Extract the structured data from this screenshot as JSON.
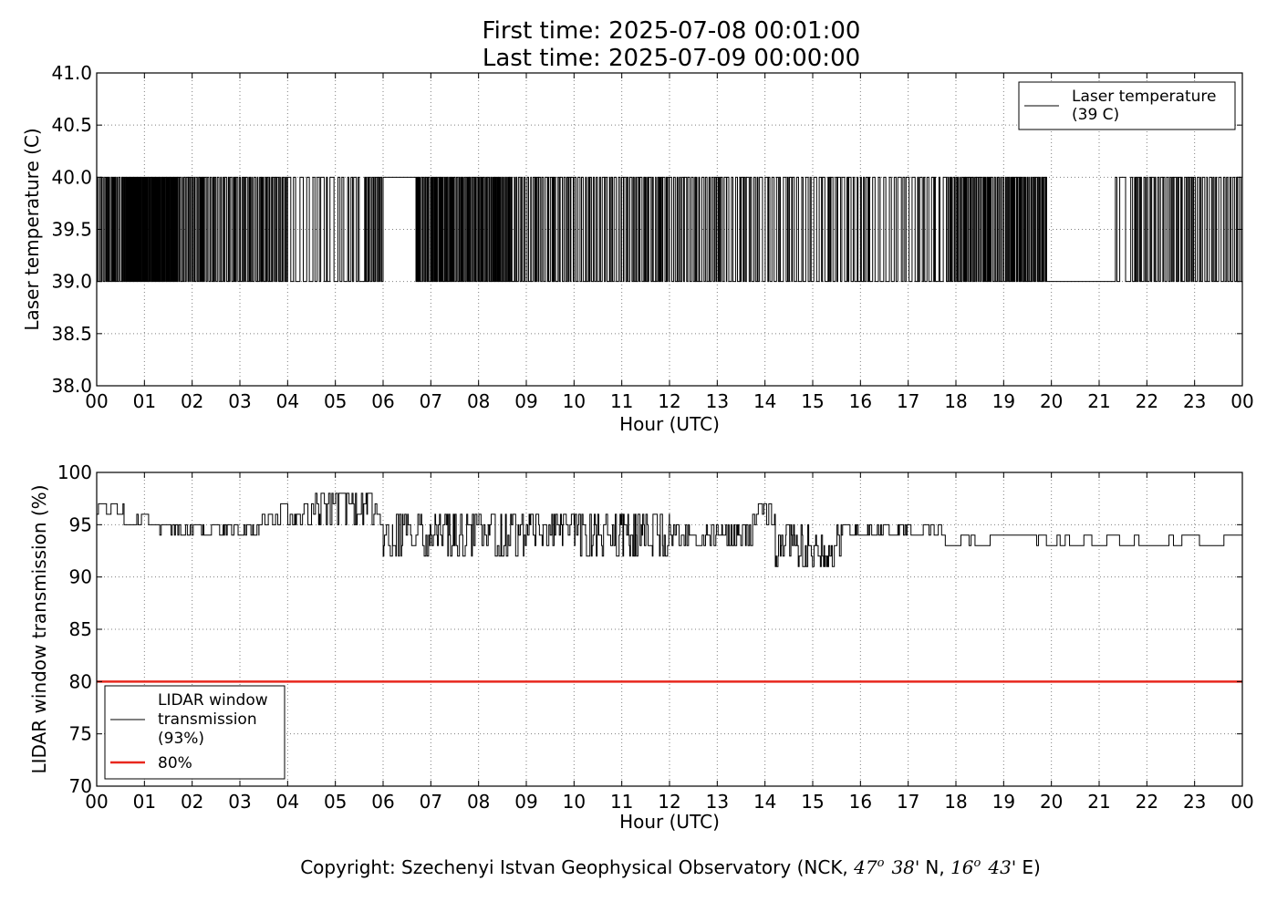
{
  "header": {
    "first_time": "First time: 2025-07-08 00:01:00",
    "last_time": "Last time: 2025-07-09 00:00:00"
  },
  "footer": {
    "copyright_prefix": "Copyright: Szechenyi Istvan Geophysical Observatory (NCK, ",
    "lat_deg": "47",
    "lat_deg_mark": "o",
    "lat_min": "38'",
    "lat_hem": "N, ",
    "lon_deg": "16",
    "lon_deg_mark": "o",
    "lon_min": "43'",
    "lon_hem": "E)"
  },
  "colors": {
    "series": "#000000",
    "threshold": "#e8271d",
    "grid": "#7f7f7f",
    "frame": "#000000"
  },
  "chart_data": [
    {
      "type": "line",
      "id": "laser",
      "xlabel": "Hour (UTC)",
      "ylabel": "Laser temperature (C)",
      "xlim": [
        0,
        24
      ],
      "ylim": [
        38.0,
        41.0
      ],
      "x_ticks": [
        "00",
        "01",
        "02",
        "03",
        "04",
        "05",
        "06",
        "07",
        "08",
        "09",
        "10",
        "11",
        "12",
        "13",
        "14",
        "15",
        "16",
        "17",
        "18",
        "19",
        "20",
        "21",
        "22",
        "23",
        "00"
      ],
      "y_ticks": [
        "38.0",
        "38.5",
        "39.0",
        "39.5",
        "40.0",
        "40.5",
        "41.0"
      ],
      "y_tick_values": [
        38.0,
        38.5,
        39.0,
        39.5,
        40.0,
        40.5,
        41.0
      ],
      "grid": true,
      "legend": {
        "placement": "top-right",
        "line1": "Laser temperature",
        "line2": "(39 C)"
      },
      "series": [
        {
          "name": "Laser temperature (39 C)",
          "levels": [
            39,
            40
          ],
          "note_values": "step series toggling between 39 and 40 C; steady 40 C 06:00-06:40, steady 39 C 19:55-21:20",
          "segments": [
            {
              "x0": 0.0,
              "x1": 0.55,
              "pattern": "toggle",
              "rate": 0.02
            },
            {
              "x0": 0.55,
              "x1": 1.7,
              "pattern": "toggle",
              "rate": 0.012
            },
            {
              "x0": 1.7,
              "x1": 4.0,
              "pattern": "toggle",
              "rate": 0.022
            },
            {
              "x0": 4.0,
              "x1": 5.5,
              "pattern": "toggle",
              "rate": 0.055
            },
            {
              "x0": 5.5,
              "x1": 5.6,
              "value": 39
            },
            {
              "x0": 5.6,
              "x1": 6.0,
              "pattern": "toggle",
              "rate": 0.018
            },
            {
              "x0": 6.0,
              "x1": 6.68,
              "value": 40
            },
            {
              "x0": 6.68,
              "x1": 8.7,
              "pattern": "toggle",
              "rate": 0.016
            },
            {
              "x0": 8.7,
              "x1": 12.0,
              "pattern": "toggle",
              "rate": 0.03
            },
            {
              "x0": 12.0,
              "x1": 13.2,
              "pattern": "toggle",
              "rate": 0.028
            },
            {
              "x0": 13.2,
              "x1": 16.0,
              "pattern": "toggle",
              "rate": 0.04
            },
            {
              "x0": 16.0,
              "x1": 17.8,
              "pattern": "toggle",
              "rate": 0.045
            },
            {
              "x0": 17.8,
              "x1": 19.9,
              "pattern": "toggle",
              "rate": 0.02
            },
            {
              "x0": 19.9,
              "x1": 21.2,
              "value": 39
            },
            {
              "x0": 21.2,
              "x1": 21.7,
              "pattern": "toggle",
              "rate": 0.09
            },
            {
              "x0": 21.7,
              "x1": 24.0,
              "pattern": "toggle",
              "rate": 0.03
            }
          ]
        }
      ]
    },
    {
      "type": "line",
      "id": "lidar",
      "xlabel": "Hour (UTC)",
      "ylabel": "LIDAR window transmission (%)",
      "xlim": [
        0,
        24
      ],
      "ylim": [
        70,
        100
      ],
      "x_ticks": [
        "00",
        "01",
        "02",
        "03",
        "04",
        "05",
        "06",
        "07",
        "08",
        "09",
        "10",
        "11",
        "12",
        "13",
        "14",
        "15",
        "16",
        "17",
        "18",
        "19",
        "20",
        "21",
        "22",
        "23",
        "00"
      ],
      "y_ticks": [
        "70",
        "75",
        "80",
        "85",
        "90",
        "95",
        "100"
      ],
      "y_tick_values": [
        70,
        75,
        80,
        85,
        90,
        95,
        100
      ],
      "grid": true,
      "legend": {
        "placement": "bottom-left",
        "line1": "LIDAR window",
        "line2": "transmission",
        "line3": "(93%)",
        "threshold_label": "80%"
      },
      "threshold": {
        "name": "80%",
        "value": 80
      },
      "series": [
        {
          "name": "LIDAR window transmission (93%)",
          "segments": [
            {
              "x0": 0.0,
              "x1": 0.55,
              "base": 96,
              "jitter": [
                0,
                1
              ],
              "rate": 0.04
            },
            {
              "x0": 0.55,
              "x1": 1.0,
              "base": 96,
              "jitter": [
                -1,
                0
              ],
              "rate": 0.05
            },
            {
              "x0": 1.0,
              "x1": 1.3,
              "base": 95,
              "jitter": [
                0
              ],
              "rate": 0.1
            },
            {
              "x0": 1.3,
              "x1": 3.4,
              "base": 94,
              "jitter": [
                0,
                1
              ],
              "rate": 0.025
            },
            {
              "x0": 3.4,
              "x1": 3.8,
              "base": 95,
              "jitter": [
                0,
                1
              ],
              "rate": 0.05
            },
            {
              "x0": 3.8,
              "x1": 4.5,
              "base": 96,
              "jitter": [
                -1,
                0,
                1
              ],
              "rate": 0.04
            },
            {
              "x0": 4.5,
              "x1": 5.9,
              "base": 96,
              "jitter": [
                -1,
                0,
                1,
                2
              ],
              "rate": 0.03
            },
            {
              "x0": 5.9,
              "x1": 6.2,
              "base": 94,
              "jitter": [
                -2,
                -1,
                0,
                1
              ],
              "rate": 0.03
            },
            {
              "x0": 6.2,
              "x1": 9.0,
              "base": 94,
              "jitter": [
                -2,
                -1,
                0,
                1,
                2
              ],
              "rate": 0.022
            },
            {
              "x0": 9.0,
              "x1": 10.0,
              "base": 94,
              "jitter": [
                -1,
                0,
                1,
                2
              ],
              "rate": 0.025
            },
            {
              "x0": 10.0,
              "x1": 12.0,
              "base": 94,
              "jitter": [
                -2,
                -1,
                0,
                1,
                2
              ],
              "rate": 0.022
            },
            {
              "x0": 12.0,
              "x1": 13.7,
              "base": 94,
              "jitter": [
                -1,
                0,
                1
              ],
              "rate": 0.025
            },
            {
              "x0": 13.7,
              "x1": 14.2,
              "base": 95,
              "jitter": [
                0,
                1,
                2
              ],
              "rate": 0.04
            },
            {
              "x0": 14.2,
              "x1": 15.6,
              "base": 94,
              "jitter": [
                -3,
                -2,
                -1,
                0,
                1
              ],
              "rate": 0.022
            },
            {
              "x0": 15.6,
              "x1": 17.7,
              "base": 94,
              "jitter": [
                0,
                1
              ],
              "rate": 0.03
            },
            {
              "x0": 17.7,
              "x1": 18.4,
              "base": 94,
              "jitter": [
                -1,
                0
              ],
              "rate": 0.06
            },
            {
              "x0": 18.4,
              "x1": 19.3,
              "base": 94,
              "jitter": [
                0
              ],
              "rate": 0.2
            },
            {
              "x0": 19.3,
              "x1": 20.5,
              "base": 93,
              "jitter": [
                0,
                1
              ],
              "rate": 0.06
            },
            {
              "x0": 20.5,
              "x1": 24.0,
              "base": 93,
              "jitter": [
                0,
                1
              ],
              "rate": 0.18
            }
          ]
        }
      ]
    }
  ]
}
